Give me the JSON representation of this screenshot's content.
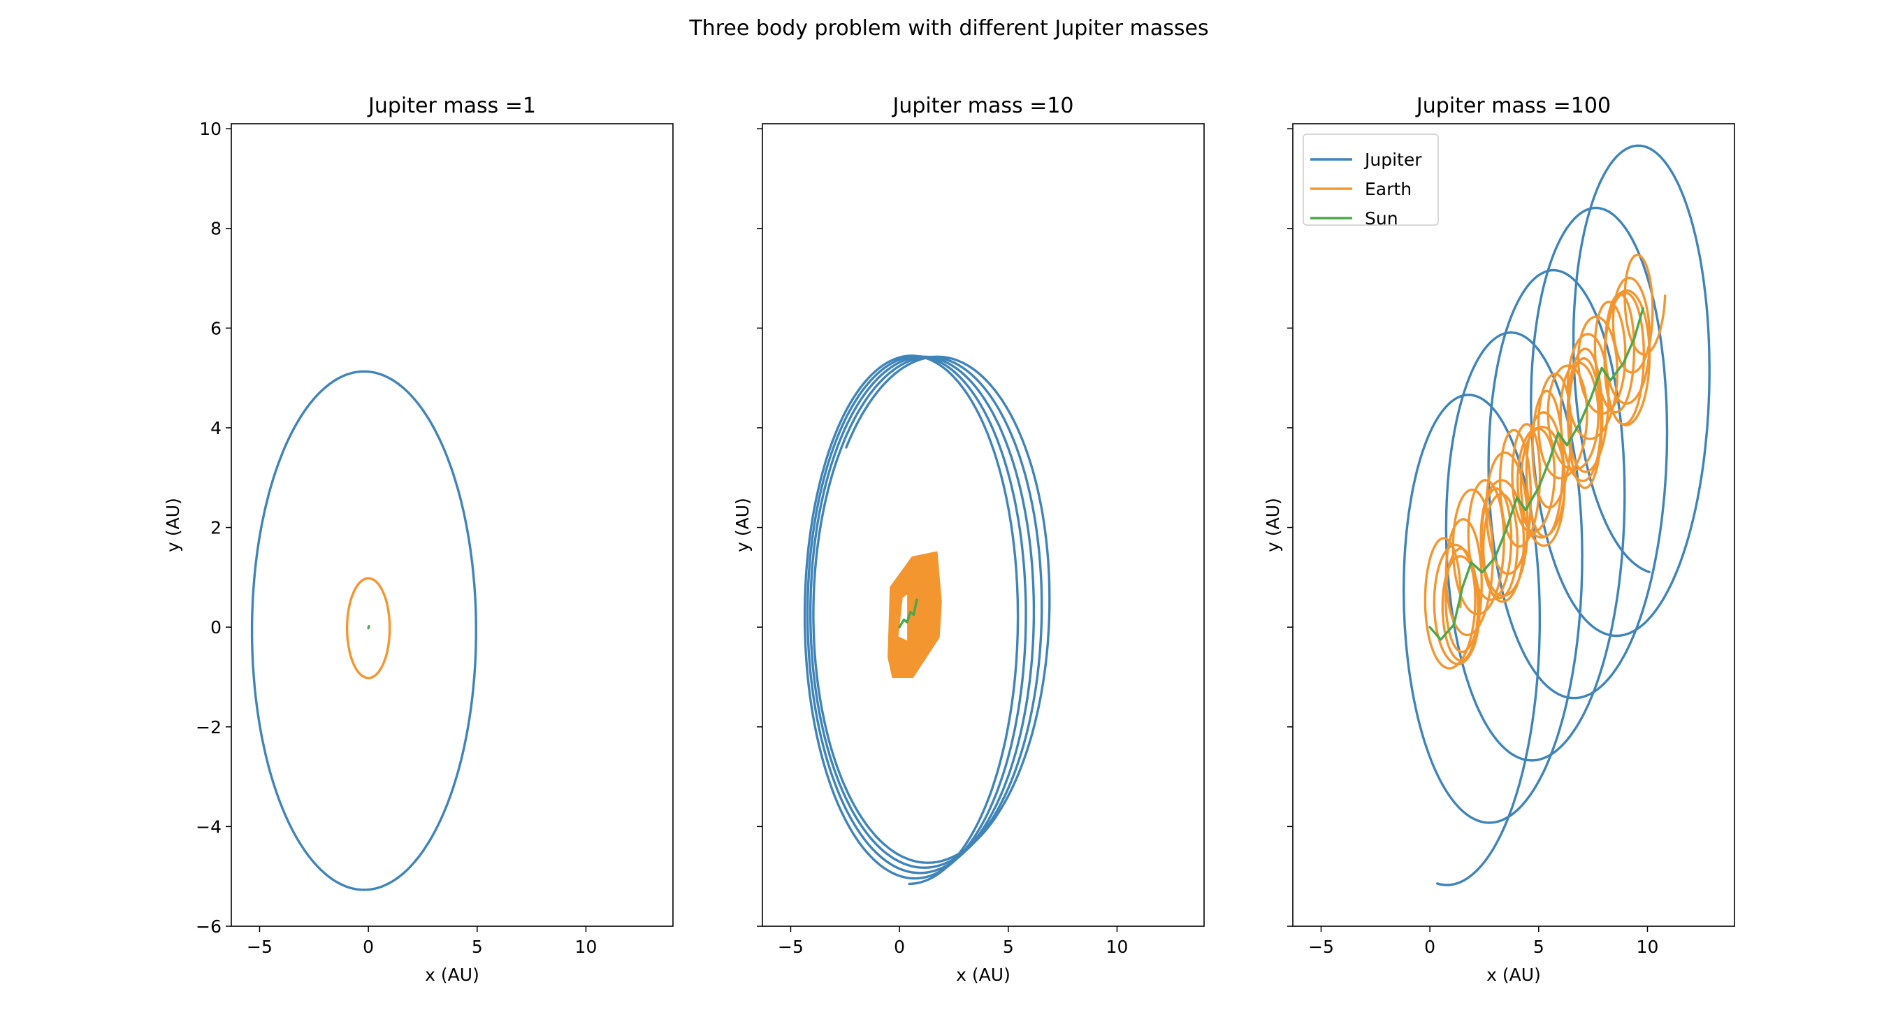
{
  "figure": {
    "suptitle": "Three body problem with different Jupiter masses"
  },
  "colors": {
    "jupiter": "#3f84b9",
    "earth": "#f39630",
    "sun": "#4aa84a"
  },
  "legend": {
    "placement": "upper-left",
    "entries": [
      "Jupiter",
      "Earth",
      "Sun"
    ]
  },
  "chart_data": [
    {
      "type": "line",
      "title": "Jupiter mass =1",
      "xlabel": "x (AU)",
      "ylabel": "y (AU)",
      "xlim": [
        -6.3,
        14.0
      ],
      "ylim": [
        -6.0,
        10.1
      ],
      "xticks": [
        "−5",
        "0",
        "5",
        "10"
      ],
      "yticks": [
        "−6",
        "−4",
        "−2",
        "0",
        "2",
        "4",
        "6",
        "8",
        "10"
      ],
      "series": [
        {
          "key": "jupiter",
          "shape": "ellipse",
          "center": [
            -0.2,
            -0.07
          ],
          "radius": [
            5.15,
            5.2
          ],
          "turns": 1
        },
        {
          "key": "earth",
          "shape": "ellipse",
          "center": [
            0.0,
            -0.02
          ],
          "radius": [
            0.98,
            1.0
          ],
          "turns": 1
        },
        {
          "key": "sun",
          "shape": "points",
          "points": [
            [
              0.0,
              -0.02
            ],
            [
              0.02,
              0.02
            ]
          ]
        }
      ]
    },
    {
      "type": "line",
      "title": "Jupiter mass =10",
      "xlabel": "x (AU)",
      "ylabel": "y (AU)",
      "xlim": [
        -6.3,
        14.0
      ],
      "ylim": [
        -6.0,
        10.1
      ],
      "xticks": [
        "−5",
        "0",
        "5",
        "10"
      ],
      "yticks": [
        "−6",
        "−4",
        "−2",
        "0",
        "2",
        "4",
        "6",
        "8",
        "10"
      ],
      "series": [
        {
          "key": "jupiter",
          "shape": "spiral",
          "turns": 4.6
        },
        {
          "key": "earth",
          "shape": "band",
          "outline": [
            [
              -0.5,
              -0.6
            ],
            [
              -0.4,
              0.8
            ],
            [
              0.6,
              1.4
            ],
            [
              1.7,
              1.5
            ],
            [
              1.9,
              0.5
            ],
            [
              1.8,
              -0.2
            ],
            [
              0.6,
              -1.0
            ],
            [
              -0.3,
              -1.0
            ]
          ],
          "hole": [
            [
              -0.1,
              -0.2
            ],
            [
              0.4,
              -0.3
            ],
            [
              0.4,
              0.7
            ],
            [
              0.1,
              0.6
            ]
          ]
        },
        {
          "key": "sun",
          "shape": "points",
          "points": [
            [
              0.0,
              0.0
            ],
            [
              0.2,
              0.15
            ],
            [
              0.35,
              0.1
            ],
            [
              0.5,
              0.3
            ],
            [
              0.65,
              0.25
            ],
            [
              0.8,
              0.55
            ]
          ]
        }
      ]
    },
    {
      "type": "line",
      "title": "Jupiter mass =100",
      "xlabel": "x (AU)",
      "ylabel": "y (AU)",
      "xlim": [
        -6.3,
        14.0
      ],
      "ylim": [
        -6.0,
        10.1
      ],
      "xticks": [
        "−5",
        "0",
        "5",
        "10"
      ],
      "yticks": [
        "−6",
        "−4",
        "−2",
        "0",
        "2",
        "4",
        "6",
        "8",
        "10"
      ],
      "series": [
        {
          "key": "jupiter",
          "shape": "drifting-ellipses",
          "turns": 5
        },
        {
          "key": "earth",
          "shape": "drifting-loops",
          "turns": 30
        },
        {
          "key": "sun",
          "shape": "points",
          "points": [
            [
              0.0,
              0.0
            ],
            [
              0.5,
              -0.25
            ],
            [
              1.1,
              0.05
            ],
            [
              1.5,
              0.8
            ],
            [
              1.9,
              1.3
            ],
            [
              2.4,
              1.1
            ],
            [
              3.0,
              1.4
            ],
            [
              3.5,
              1.95
            ],
            [
              4.0,
              2.6
            ],
            [
              4.4,
              2.35
            ],
            [
              5.0,
              2.8
            ],
            [
              5.5,
              3.35
            ],
            [
              5.9,
              3.9
            ],
            [
              6.3,
              3.65
            ],
            [
              6.9,
              4.1
            ],
            [
              7.4,
              4.6
            ],
            [
              7.9,
              5.2
            ],
            [
              8.3,
              4.95
            ],
            [
              8.9,
              5.3
            ],
            [
              9.4,
              5.8
            ],
            [
              9.8,
              6.4
            ]
          ]
        }
      ]
    }
  ]
}
